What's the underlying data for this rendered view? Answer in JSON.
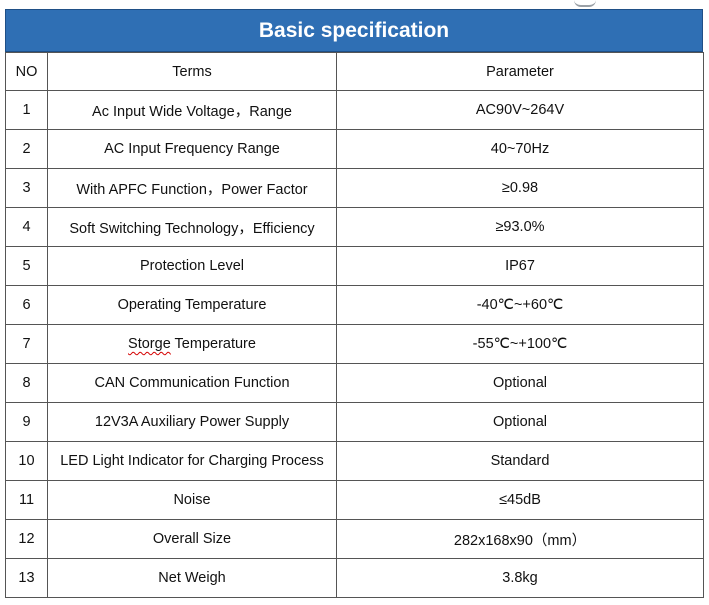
{
  "title": "Basic specification",
  "headers": {
    "no": "NO",
    "terms": "Terms",
    "parameter": "Parameter"
  },
  "rows": [
    {
      "no": "1",
      "terms": "Ac Input Wide Voltage，Range",
      "parameter": "AC90V~264V"
    },
    {
      "no": "2",
      "terms": "AC Input Frequency Range",
      "parameter": "40~70Hz"
    },
    {
      "no": "3",
      "terms": "With APFC Function，Power Factor",
      "parameter": "≥0.98"
    },
    {
      "no": "4",
      "terms": "Soft Switching Technology，Efficiency",
      "parameter": "≥93.0%"
    },
    {
      "no": "5",
      "terms": "Protection Level",
      "parameter": "IP67"
    },
    {
      "no": "6",
      "terms": "Operating Temperature",
      "parameter": "-40℃~+60℃"
    },
    {
      "no": "7",
      "terms_a": "Storge",
      "terms_b": " Temperature",
      "parameter": "-55℃~+100℃"
    },
    {
      "no": "8",
      "terms": "CAN Communication Function",
      "parameter": "Optional"
    },
    {
      "no": "9",
      "terms": "12V3A Auxiliary Power Supply",
      "parameter": "Optional"
    },
    {
      "no": "10",
      "terms": "LED Light Indicator for Charging Process",
      "parameter": "Standard"
    },
    {
      "no": "11",
      "terms": "Noise",
      "parameter": "≤45dB"
    },
    {
      "no": "12",
      "terms": "Overall Size",
      "parameter": "282x168x90（mm）"
    },
    {
      "no": "13",
      "terms": "Net Weigh",
      "parameter": "3.8kg"
    }
  ],
  "colors": {
    "banner": "#2f6fb4",
    "border": "#555555",
    "spellcheck": "#d40000"
  }
}
